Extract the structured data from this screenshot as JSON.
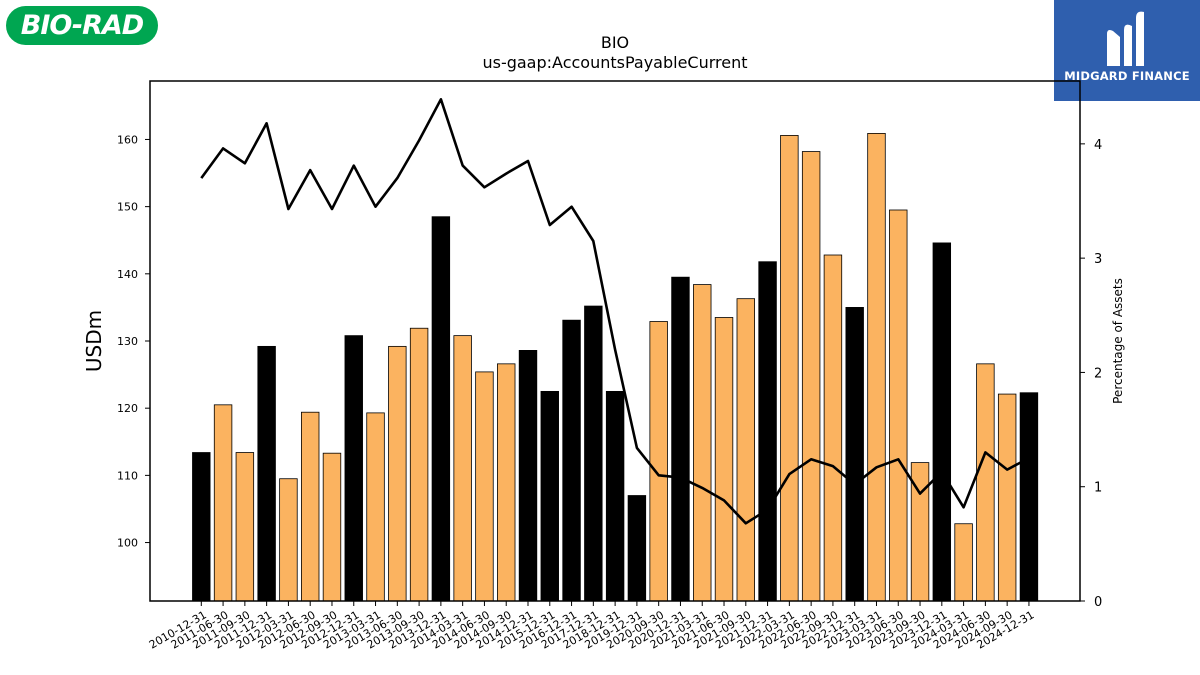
{
  "logos": {
    "left_text": "BIO-RAD",
    "left_color": "#00a651",
    "right_text": "MIDGARD FINANCE",
    "right_color": "#2f5fae"
  },
  "chart_data": {
    "type": "bar",
    "title": "BIO",
    "subtitle": "us-gaap:AccountsPayableCurrent",
    "ylabel": "USDm",
    "y2label": "Percentage of Assets",
    "ylim": [
      91.3,
      168.7
    ],
    "y2lim": [
      0,
      4.55
    ],
    "yticks": [
      100,
      110,
      120,
      130,
      140,
      150,
      160
    ],
    "y2ticks": [
      0,
      1,
      2,
      3,
      4
    ],
    "grid": false,
    "colors": {
      "annual": "#000000",
      "quarterly": "#fbb360",
      "line": "#000000"
    },
    "categories": [
      "2010-12-31",
      "2011-06-30",
      "2011-09-30",
      "2011-12-31",
      "2012-03-31",
      "2012-06-30",
      "2012-09-30",
      "2012-12-31",
      "2013-03-31",
      "2013-06-30",
      "2013-09-30",
      "2013-12-31",
      "2014-03-31",
      "2014-06-30",
      "2014-09-30",
      "2014-12-31",
      "2015-12-31",
      "2016-12-31",
      "2017-12-31",
      "2018-12-31",
      "2019-12-31",
      "2020-09-30",
      "2020-12-31",
      "2021-03-31",
      "2021-06-30",
      "2021-09-30",
      "2021-12-31",
      "2022-03-31",
      "2022-06-30",
      "2022-09-30",
      "2022-12-31",
      "2023-03-31",
      "2023-06-30",
      "2023-09-30",
      "2023-12-31",
      "2024-03-31",
      "2024-06-30",
      "2024-09-30",
      "2024-12-31"
    ],
    "series": [
      {
        "type": "bar",
        "values": [
          113.4,
          120.5,
          113.4,
          129.2,
          109.5,
          119.4,
          113.3,
          130.8,
          119.3,
          129.2,
          131.9,
          148.5,
          130.8,
          125.4,
          126.6,
          128.6,
          122.5,
          133.1,
          135.2,
          122.5,
          107.0,
          132.9,
          139.5,
          138.4,
          133.5,
          136.3,
          141.8,
          160.6,
          158.2,
          142.8,
          135.0,
          160.9,
          149.5,
          111.9,
          144.6,
          102.8,
          126.6,
          122.1,
          122.3
        ],
        "period": [
          "annual",
          "quarterly",
          "quarterly",
          "annual",
          "quarterly",
          "quarterly",
          "quarterly",
          "annual",
          "quarterly",
          "quarterly",
          "quarterly",
          "annual",
          "quarterly",
          "quarterly",
          "quarterly",
          "annual",
          "annual",
          "annual",
          "annual",
          "annual",
          "annual",
          "quarterly",
          "annual",
          "quarterly",
          "quarterly",
          "quarterly",
          "annual",
          "quarterly",
          "quarterly",
          "quarterly",
          "annual",
          "quarterly",
          "quarterly",
          "quarterly",
          "annual",
          "quarterly",
          "quarterly",
          "quarterly",
          "annual"
        ]
      },
      {
        "type": "line",
        "values": [
          3.7,
          3.96,
          3.83,
          4.18,
          3.43,
          3.77,
          3.43,
          3.81,
          3.45,
          3.7,
          4.03,
          4.39,
          3.81,
          3.62,
          3.74,
          3.85,
          3.29,
          3.45,
          3.15,
          2.2,
          1.34,
          1.1,
          1.08,
          0.99,
          0.88,
          0.68,
          0.8,
          1.11,
          1.24,
          1.18,
          1.02,
          1.17,
          1.24,
          0.94,
          1.13,
          0.82,
          1.3,
          1.15,
          1.25
        ]
      }
    ]
  }
}
